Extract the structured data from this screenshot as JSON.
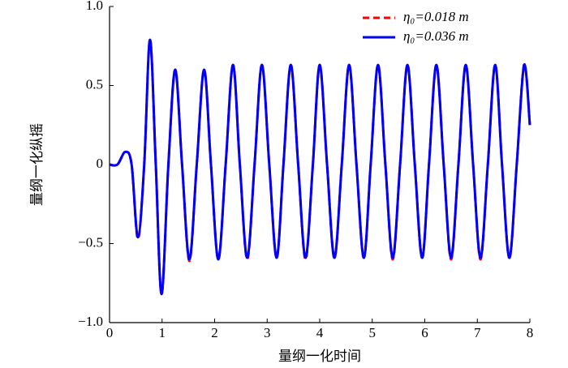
{
  "chart_data": {
    "type": "line",
    "x_label": "量纲一化时间",
    "y_label": "量纲一化纵摇",
    "x": [
      0,
      0.15,
      0.3,
      0.42,
      0.54,
      0.66,
      0.77,
      0.88,
      0.99,
      1.12,
      1.25,
      1.38,
      1.52,
      1.66,
      1.8,
      1.93,
      2.07,
      2.21,
      2.35,
      2.48,
      2.62,
      2.76,
      2.9,
      3.04,
      3.18,
      3.31,
      3.45,
      3.59,
      3.73,
      3.87,
      4.0,
      4.14,
      4.28,
      4.42,
      4.56,
      4.7,
      4.84,
      4.97,
      5.11,
      5.25,
      5.39,
      5.53,
      5.67,
      5.81,
      5.95,
      6.08,
      6.22,
      6.36,
      6.5,
      6.64,
      6.78,
      6.92,
      7.06,
      7.2,
      7.34,
      7.47,
      7.61,
      7.75,
      7.89,
      8.0
    ],
    "series": [
      {
        "name": "η₀=0.018 m",
        "color": "#ff0000",
        "dash": true,
        "values": [
          0,
          0,
          0.08,
          0,
          -0.47,
          0,
          0.79,
          0,
          -0.82,
          0,
          0.6,
          0,
          -0.61,
          0,
          0.6,
          0,
          -0.6,
          0,
          0.63,
          0,
          -0.6,
          0,
          0.63,
          0,
          -0.59,
          0,
          0.63,
          0,
          -0.6,
          0,
          0.63,
          0,
          -0.59,
          0,
          0.63,
          0,
          -0.59,
          0,
          0.63,
          0,
          -0.6,
          0,
          0.63,
          0,
          -0.59,
          0,
          0.63,
          0,
          -0.6,
          0,
          0.63,
          0,
          -0.6,
          0,
          0.63,
          0,
          -0.59,
          0,
          0.63,
          0.25
        ]
      },
      {
        "name": "η₀=0.036 m",
        "color": "#0000ff",
        "dash": false,
        "values": [
          0,
          0,
          0.08,
          0,
          -0.46,
          0,
          0.79,
          0,
          -0.82,
          0,
          0.6,
          0,
          -0.6,
          0,
          0.6,
          0,
          -0.6,
          0,
          0.63,
          0,
          -0.59,
          0,
          0.63,
          0,
          -0.59,
          0,
          0.63,
          0,
          -0.59,
          0,
          0.63,
          0,
          -0.59,
          0,
          0.63,
          0,
          -0.59,
          0,
          0.63,
          0,
          -0.59,
          0,
          0.63,
          0,
          -0.59,
          0,
          0.63,
          0,
          -0.59,
          0,
          0.63,
          0,
          -0.59,
          0,
          0.63,
          0,
          -0.59,
          0,
          0.63,
          0.25
        ]
      }
    ],
    "xlim": [
      0,
      8
    ],
    "ylim": [
      -1.0,
      1.0
    ],
    "xticks": [
      0,
      1,
      2,
      3,
      4,
      5,
      6,
      7,
      8
    ],
    "yticks": [
      {
        "value": -1.0,
        "label": "−1.0"
      },
      {
        "value": -0.5,
        "label": "−0.5"
      },
      0,
      0.5,
      {
        "value": 1.0,
        "label": "1.0"
      }
    ],
    "legend": "upper right"
  }
}
